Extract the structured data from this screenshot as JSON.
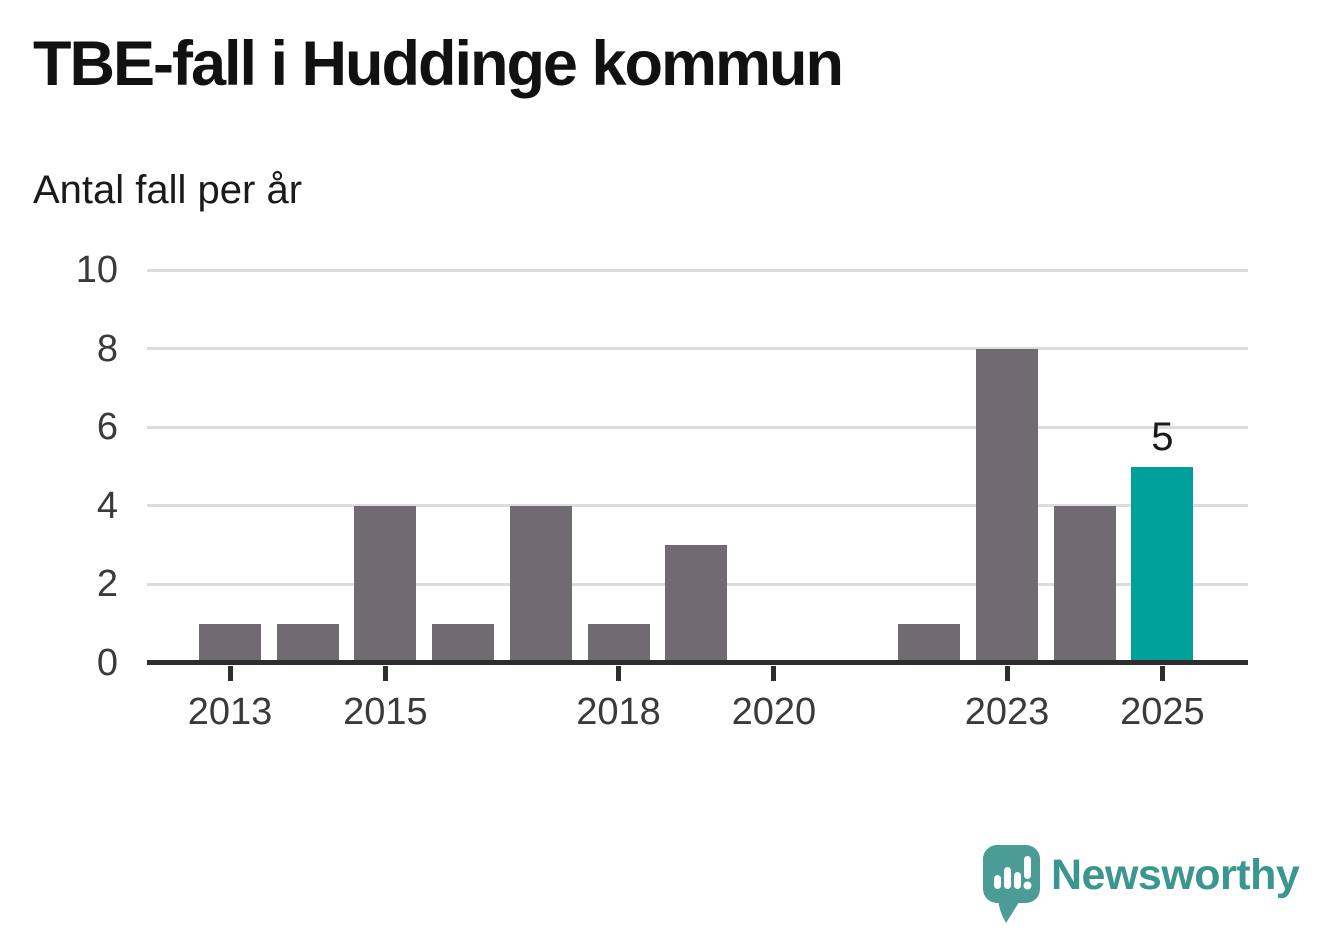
{
  "header": {
    "title": "TBE-fall i Huddinge kommun",
    "subtitle": "Antal fall per år"
  },
  "chart_data": {
    "type": "bar",
    "title": "TBE-fall i Huddinge kommun",
    "subtitle": "Antal fall per år",
    "ylabel": "Antal fall per år",
    "xlabel": "",
    "categories": [
      2013,
      2014,
      2015,
      2016,
      2017,
      2018,
      2019,
      2020,
      2021,
      2022,
      2023,
      2024,
      2025
    ],
    "values": [
      1,
      1,
      4,
      1,
      4,
      1,
      3,
      0,
      0,
      1,
      8,
      4,
      5
    ],
    "ylim": [
      0,
      10
    ],
    "yticks": [
      0,
      2,
      4,
      6,
      8,
      10
    ],
    "xtick_labels": [
      "2013",
      "2015",
      "2018",
      "2020",
      "2023",
      "2025"
    ],
    "grid": "horizontal",
    "legend": "none",
    "highlight_index": 12,
    "highlight_label": "5",
    "colors": {
      "bar": "#6f6b71",
      "highlight": "#00a09a",
      "gridline": "#dcdcdc",
      "axis": "#2d2d2d",
      "tick_text": "#3a3a3a"
    }
  },
  "branding": {
    "logo_text": "Newsworthy",
    "logo_text_color": "#3a968e",
    "logo_bubble_color": "#4a9c95",
    "logo_icon": "speech-bubble-bar-chart-exclamation-icon"
  }
}
